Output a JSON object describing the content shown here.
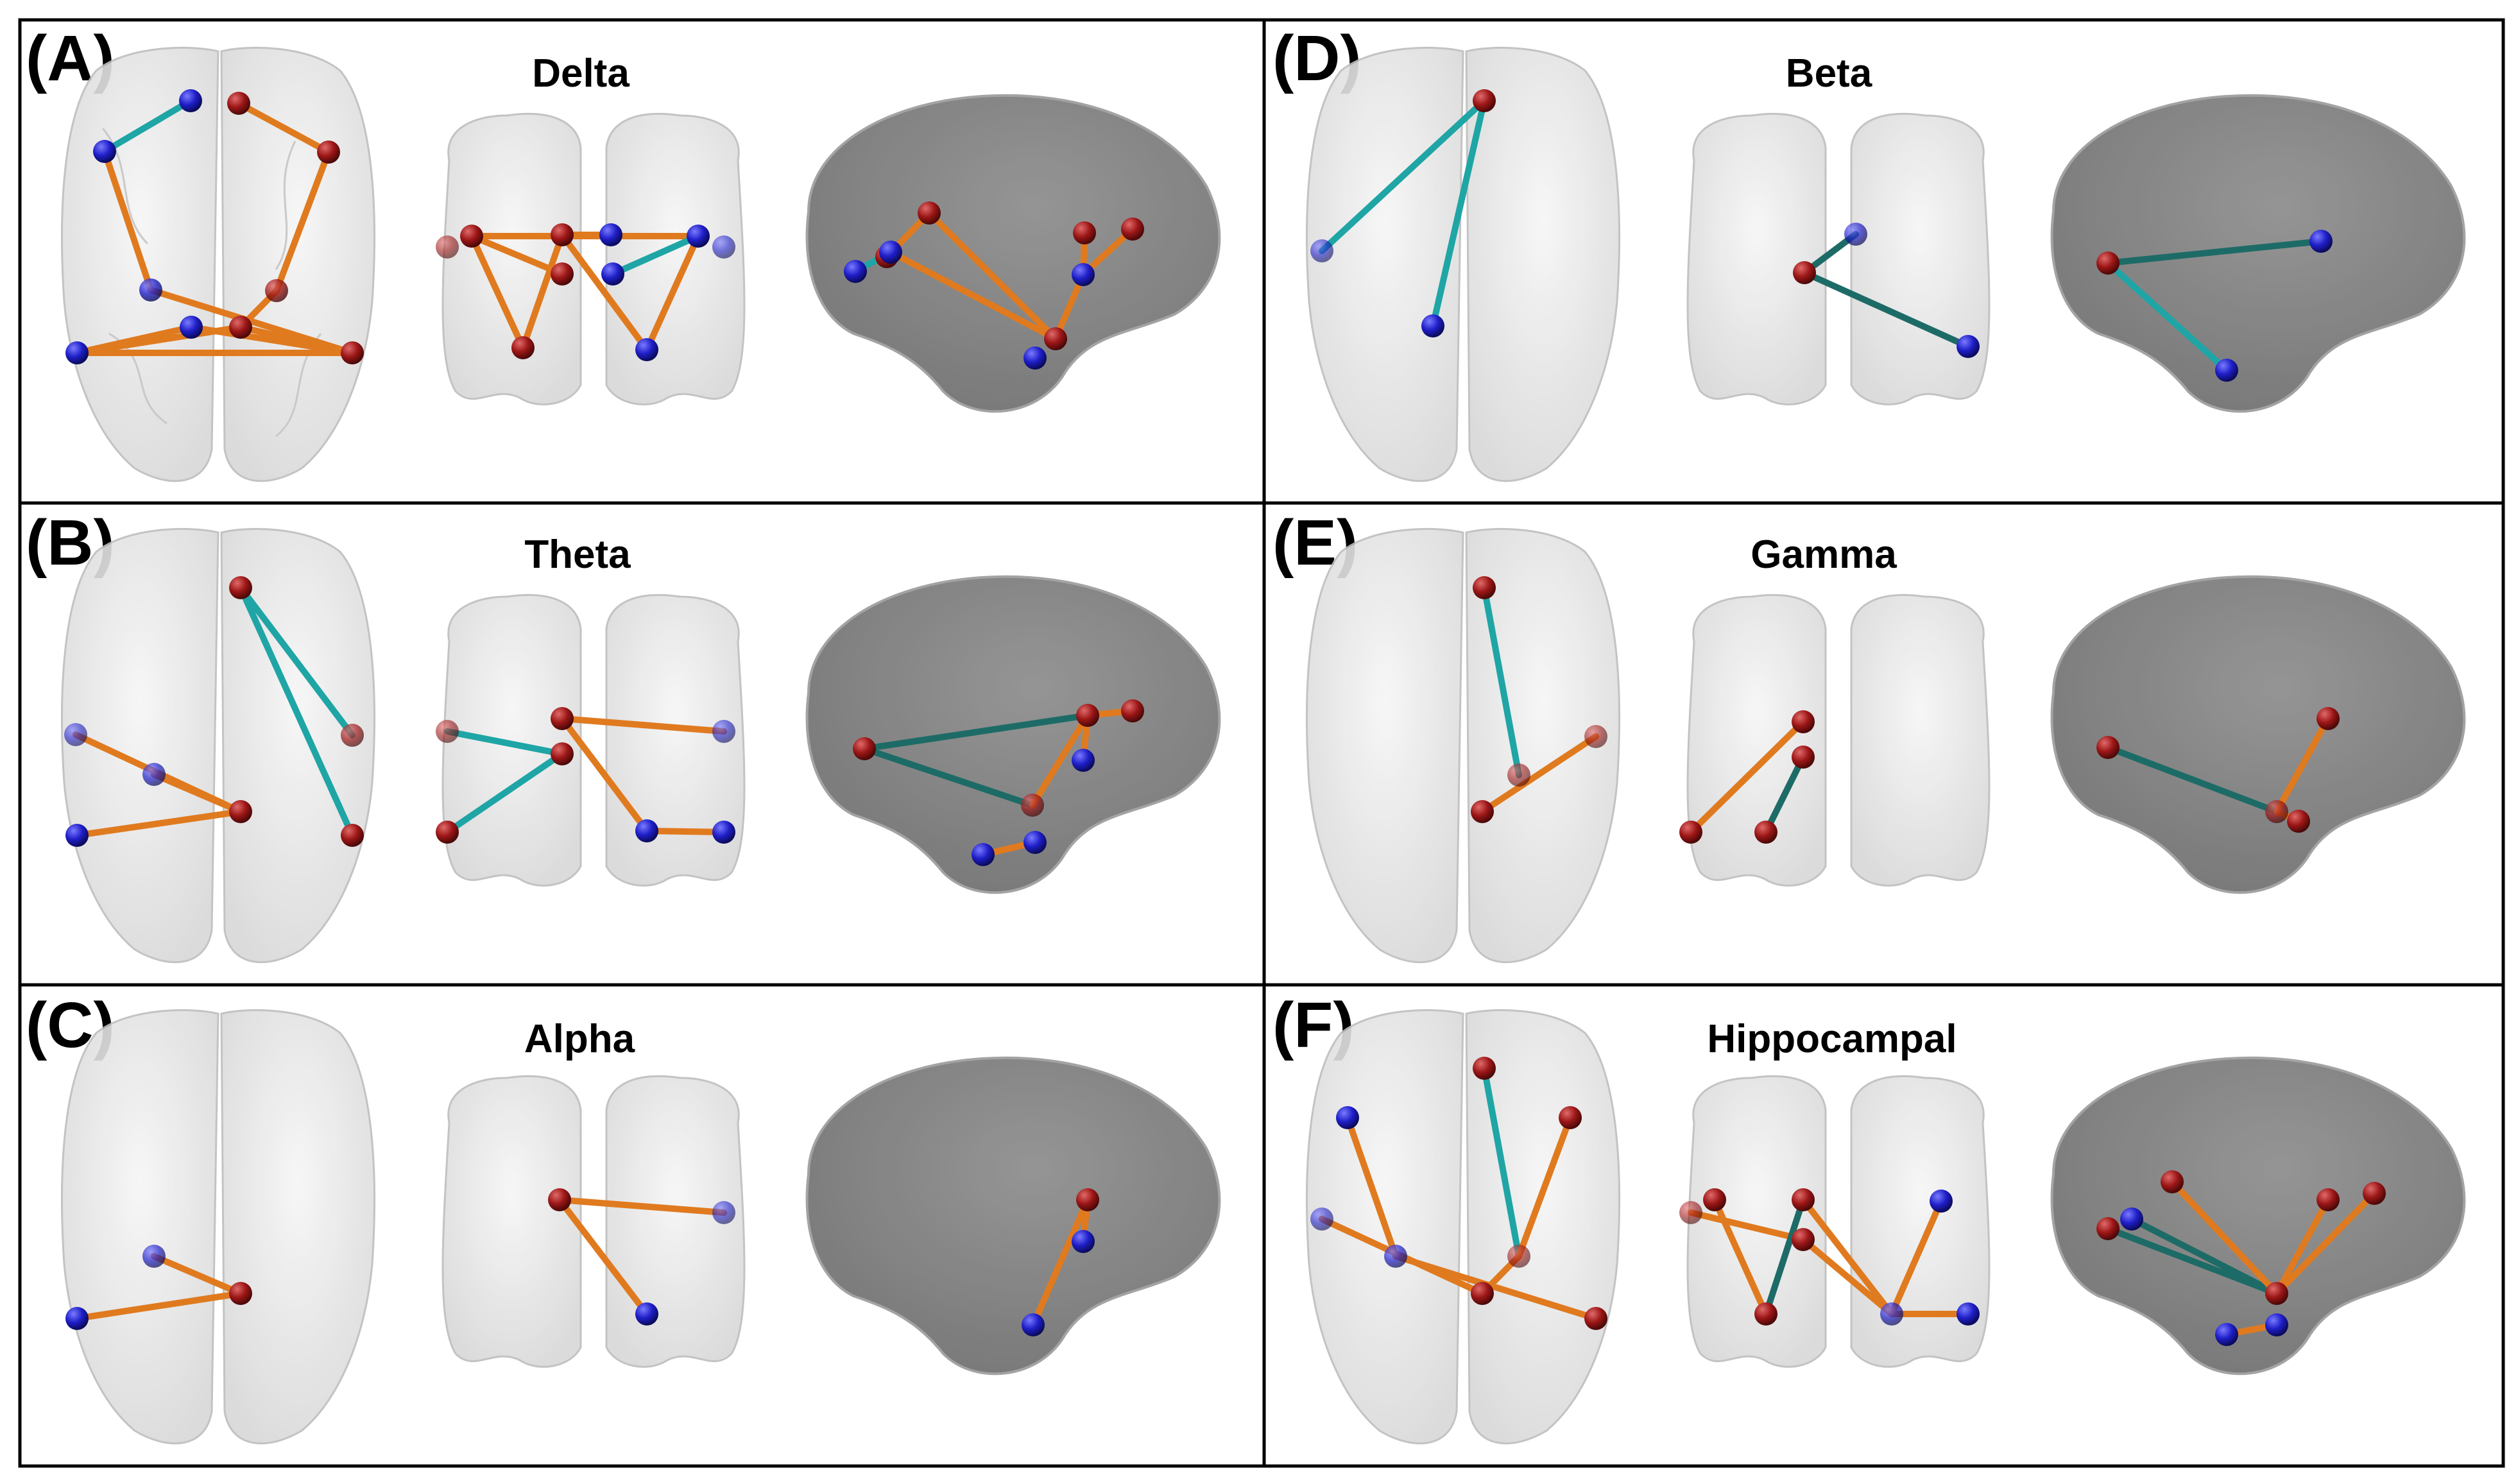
{
  "colors": {
    "blue_node": "#2222cc",
    "red_node": "#a01818",
    "orange_edge": "#e07a1f",
    "teal_edge": "#1fa5a5",
    "dark_teal_edge": "#1d6b66",
    "brain_light": "#e6e6e6",
    "brain_dark": "#7d7d7d",
    "frame": "#000000"
  },
  "panels": [
    {
      "letter": "(A)",
      "band": "Delta"
    },
    {
      "letter": "(B)",
      "band": "Theta"
    },
    {
      "letter": "(C)",
      "band": "Alpha"
    },
    {
      "letter": "(D)",
      "band": "Beta"
    },
    {
      "letter": "(E)",
      "band": "Gamma"
    },
    {
      "letter": "(F)",
      "band": "Hippocampal"
    }
  ]
}
